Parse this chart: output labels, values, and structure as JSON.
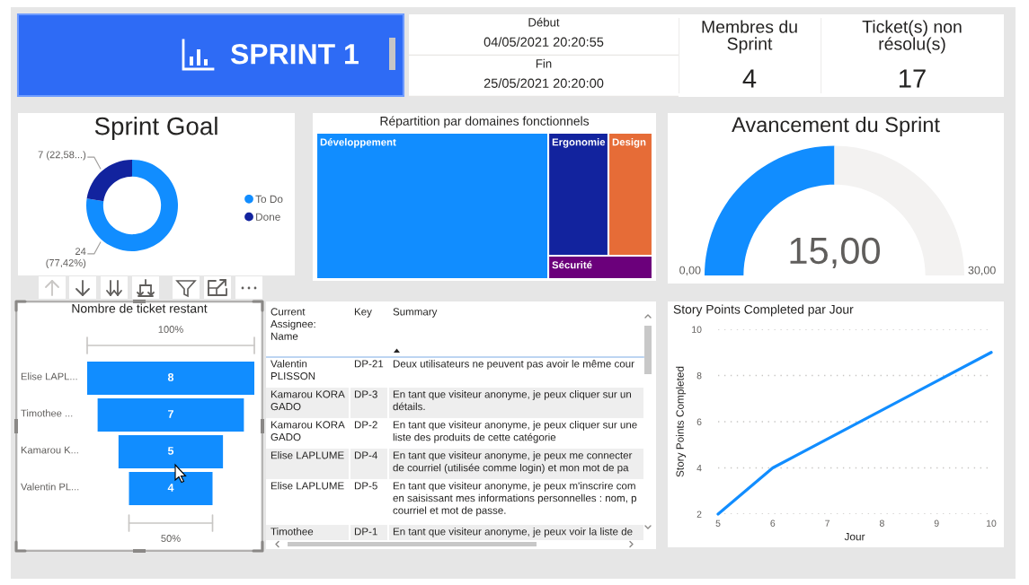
{
  "chart_data": [
    {
      "type": "other",
      "title": "SPRINT 1"
    },
    {
      "type": "other",
      "title": "Début",
      "annotations": [
        "04/05/2021 20:20:55"
      ]
    },
    {
      "type": "other",
      "title": "Fin",
      "annotations": [
        "25/05/2021 20:20:00"
      ]
    },
    {
      "type": "other",
      "title": "Membres du\nSprint",
      "values": [
        4
      ],
      "data_labels": true
    },
    {
      "type": "other",
      "title": "Ticket(s) non\nrésolu(s)",
      "values": [
        17
      ],
      "data_labels": true
    },
    {
      "type": "donut",
      "title": "Sprint Goal",
      "categories": [
        "To Do",
        "Done"
      ],
      "values": [
        24,
        7
      ],
      "colors": [
        "#118dff",
        "#12239e"
      ],
      "value_labels": [
        "24\n(77,42%)",
        "7 (22,58...)"
      ],
      "legend": "right"
    },
    {
      "type": "other",
      "title": "Répartition par domaines fonctionnels",
      "categories": [
        "Développement",
        "Ergonomie",
        "Design",
        "Sécurité"
      ],
      "colors": [
        "#118dff",
        "#12239e",
        "#e66c37",
        "#6b007b"
      ]
    },
    {
      "type": "donut",
      "title": "Avancement du Sprint",
      "categories": [
        null,
        null
      ],
      "values": [
        15,
        15
      ],
      "colors": [
        "#118dff",
        "#f3f2f1"
      ],
      "value_labels": [
        "15,00",
        null
      ],
      "annotations": [
        "0,00",
        "30,00"
      ]
    },
    {
      "type": "other",
      "title": "Nombre de ticket restant",
      "categories": [
        "Elise LAPL...",
        "Timothee ...",
        "Kamarou K...",
        "Valentin PL..."
      ],
      "values": [
        8,
        7,
        5,
        4
      ],
      "color": "#118dff",
      "data_labels": true,
      "annotations": [
        "100%",
        "50%"
      ]
    },
    {
      "type": "other",
      "categories": [
        "Current\nAssignee:\nName",
        "Key",
        "Summary"
      ],
      "cell_labels": [
        [
          "Valentin\nPLISSON",
          "DP-21",
          "Deux utilisateurs ne peuvent pas avoir le même cour"
        ],
        [
          "Kamarou KORA\nGADO",
          "DP-3",
          "En tant que visiteur anonyme, je peux cliquer sur un\ndétails."
        ],
        [
          "Kamarou KORA\nGADO",
          "DP-2",
          "En tant que visiteur anonyme, je peux cliquer sur une\nliste des produits de cette catégorie"
        ],
        [
          "Elise LAPLUME",
          "DP-4",
          "En tant que visiteur anonyme, je peux me connecter\nde courriel (utilisée comme login) et mon mot de pa"
        ],
        [
          "Elise LAPLUME",
          "DP-5",
          "En tant que visiteur anonyme, je peux m'inscrire com\nen saisissant mes informations personnelles : nom, p\ncourriel et mot de passe."
        ],
        [
          "Timothee",
          "DP-1",
          "En tant que visiteur anonyme, je peux voir la liste de"
        ]
      ]
    },
    {
      "type": "line",
      "title": "Story Points Completed par Jour",
      "xlabel": "Jour",
      "ylabel": "Story Points Completed",
      "x": [
        5,
        6,
        10
      ],
      "values": [
        2,
        4,
        9
      ],
      "color": "#118dff",
      "xlim": [
        5,
        10
      ],
      "ylim": [
        2,
        10
      ],
      "xticks": [
        5,
        6,
        7,
        8,
        9,
        10
      ],
      "yticks": [
        2,
        4,
        6,
        8,
        10
      ],
      "grid": "y"
    }
  ]
}
